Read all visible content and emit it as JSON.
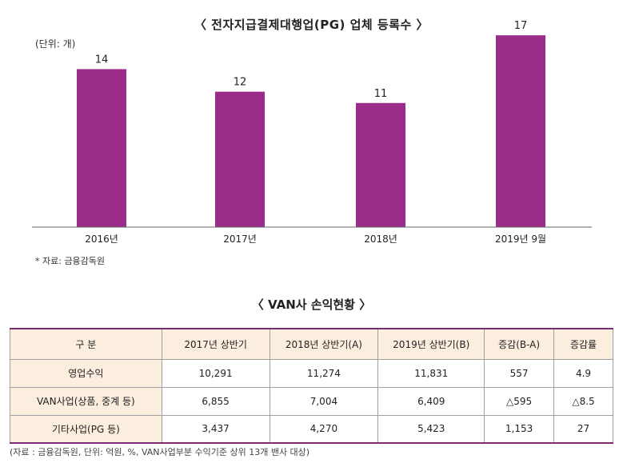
{
  "chart_data": {
    "type": "bar",
    "title": "〈 전자지급결제대행업(PG) 업체 등록수 〉",
    "unit": "(단위: 개)",
    "categories": [
      "2016년",
      "2017년",
      "2018년",
      "2019년 9월"
    ],
    "values": [
      14,
      12,
      11,
      17
    ],
    "ylim": [
      0,
      18
    ],
    "bar_color": "#9b2c8a",
    "source": "* 자료: 금융감독원"
  },
  "table": {
    "title": "〈 VAN사 손익현황 〉",
    "headers": [
      "구 분",
      "2017년 상반기",
      "2018년 상반기(A)",
      "2019년 상반기(B)",
      "증감(B-A)",
      "증감률"
    ],
    "rows": [
      [
        "영업수익",
        "10,291",
        "11,274",
        "11,831",
        "557",
        "4.9"
      ],
      [
        "VAN사업(상품, 중계 등)",
        "6,855",
        "7,004",
        "6,409",
        "△595",
        "△8.5"
      ],
      [
        "기타사업(PG 등)",
        "3,437",
        "4,270",
        "5,423",
        "1,153",
        "27"
      ]
    ],
    "note": "(자료 : 금융감독원, 단위: 억원, %, VAN사업부분 수익기준 상위 13개 밴사 대상)",
    "header_bg": "#fbeede",
    "border_accent": "#7a2b73"
  }
}
